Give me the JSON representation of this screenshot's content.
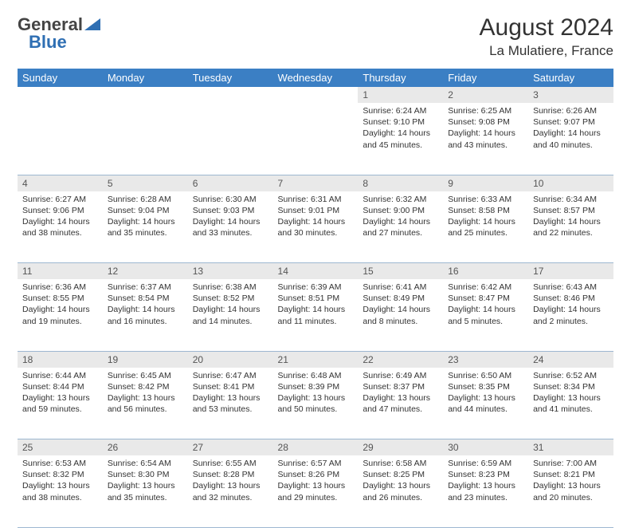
{
  "logo": {
    "word1": "General",
    "word2": "Blue",
    "word2_color": "#2f6fb3"
  },
  "title": "August 2024",
  "location": "La Mulatiere, France",
  "header_bg": "#3b7fc4",
  "daynum_bg": "#e9e9e9",
  "border_color": "#9db7d1",
  "day_headers": [
    "Sunday",
    "Monday",
    "Tuesday",
    "Wednesday",
    "Thursday",
    "Friday",
    "Saturday"
  ],
  "weeks": [
    [
      null,
      null,
      null,
      null,
      {
        "n": "1",
        "sr": "Sunrise: 6:24 AM",
        "ss": "Sunset: 9:10 PM",
        "dl": "Daylight: 14 hours and 45 minutes."
      },
      {
        "n": "2",
        "sr": "Sunrise: 6:25 AM",
        "ss": "Sunset: 9:08 PM",
        "dl": "Daylight: 14 hours and 43 minutes."
      },
      {
        "n": "3",
        "sr": "Sunrise: 6:26 AM",
        "ss": "Sunset: 9:07 PM",
        "dl": "Daylight: 14 hours and 40 minutes."
      }
    ],
    [
      {
        "n": "4",
        "sr": "Sunrise: 6:27 AM",
        "ss": "Sunset: 9:06 PM",
        "dl": "Daylight: 14 hours and 38 minutes."
      },
      {
        "n": "5",
        "sr": "Sunrise: 6:28 AM",
        "ss": "Sunset: 9:04 PM",
        "dl": "Daylight: 14 hours and 35 minutes."
      },
      {
        "n": "6",
        "sr": "Sunrise: 6:30 AM",
        "ss": "Sunset: 9:03 PM",
        "dl": "Daylight: 14 hours and 33 minutes."
      },
      {
        "n": "7",
        "sr": "Sunrise: 6:31 AM",
        "ss": "Sunset: 9:01 PM",
        "dl": "Daylight: 14 hours and 30 minutes."
      },
      {
        "n": "8",
        "sr": "Sunrise: 6:32 AM",
        "ss": "Sunset: 9:00 PM",
        "dl": "Daylight: 14 hours and 27 minutes."
      },
      {
        "n": "9",
        "sr": "Sunrise: 6:33 AM",
        "ss": "Sunset: 8:58 PM",
        "dl": "Daylight: 14 hours and 25 minutes."
      },
      {
        "n": "10",
        "sr": "Sunrise: 6:34 AM",
        "ss": "Sunset: 8:57 PM",
        "dl": "Daylight: 14 hours and 22 minutes."
      }
    ],
    [
      {
        "n": "11",
        "sr": "Sunrise: 6:36 AM",
        "ss": "Sunset: 8:55 PM",
        "dl": "Daylight: 14 hours and 19 minutes."
      },
      {
        "n": "12",
        "sr": "Sunrise: 6:37 AM",
        "ss": "Sunset: 8:54 PM",
        "dl": "Daylight: 14 hours and 16 minutes."
      },
      {
        "n": "13",
        "sr": "Sunrise: 6:38 AM",
        "ss": "Sunset: 8:52 PM",
        "dl": "Daylight: 14 hours and 14 minutes."
      },
      {
        "n": "14",
        "sr": "Sunrise: 6:39 AM",
        "ss": "Sunset: 8:51 PM",
        "dl": "Daylight: 14 hours and 11 minutes."
      },
      {
        "n": "15",
        "sr": "Sunrise: 6:41 AM",
        "ss": "Sunset: 8:49 PM",
        "dl": "Daylight: 14 hours and 8 minutes."
      },
      {
        "n": "16",
        "sr": "Sunrise: 6:42 AM",
        "ss": "Sunset: 8:47 PM",
        "dl": "Daylight: 14 hours and 5 minutes."
      },
      {
        "n": "17",
        "sr": "Sunrise: 6:43 AM",
        "ss": "Sunset: 8:46 PM",
        "dl": "Daylight: 14 hours and 2 minutes."
      }
    ],
    [
      {
        "n": "18",
        "sr": "Sunrise: 6:44 AM",
        "ss": "Sunset: 8:44 PM",
        "dl": "Daylight: 13 hours and 59 minutes."
      },
      {
        "n": "19",
        "sr": "Sunrise: 6:45 AM",
        "ss": "Sunset: 8:42 PM",
        "dl": "Daylight: 13 hours and 56 minutes."
      },
      {
        "n": "20",
        "sr": "Sunrise: 6:47 AM",
        "ss": "Sunset: 8:41 PM",
        "dl": "Daylight: 13 hours and 53 minutes."
      },
      {
        "n": "21",
        "sr": "Sunrise: 6:48 AM",
        "ss": "Sunset: 8:39 PM",
        "dl": "Daylight: 13 hours and 50 minutes."
      },
      {
        "n": "22",
        "sr": "Sunrise: 6:49 AM",
        "ss": "Sunset: 8:37 PM",
        "dl": "Daylight: 13 hours and 47 minutes."
      },
      {
        "n": "23",
        "sr": "Sunrise: 6:50 AM",
        "ss": "Sunset: 8:35 PM",
        "dl": "Daylight: 13 hours and 44 minutes."
      },
      {
        "n": "24",
        "sr": "Sunrise: 6:52 AM",
        "ss": "Sunset: 8:34 PM",
        "dl": "Daylight: 13 hours and 41 minutes."
      }
    ],
    [
      {
        "n": "25",
        "sr": "Sunrise: 6:53 AM",
        "ss": "Sunset: 8:32 PM",
        "dl": "Daylight: 13 hours and 38 minutes."
      },
      {
        "n": "26",
        "sr": "Sunrise: 6:54 AM",
        "ss": "Sunset: 8:30 PM",
        "dl": "Daylight: 13 hours and 35 minutes."
      },
      {
        "n": "27",
        "sr": "Sunrise: 6:55 AM",
        "ss": "Sunset: 8:28 PM",
        "dl": "Daylight: 13 hours and 32 minutes."
      },
      {
        "n": "28",
        "sr": "Sunrise: 6:57 AM",
        "ss": "Sunset: 8:26 PM",
        "dl": "Daylight: 13 hours and 29 minutes."
      },
      {
        "n": "29",
        "sr": "Sunrise: 6:58 AM",
        "ss": "Sunset: 8:25 PM",
        "dl": "Daylight: 13 hours and 26 minutes."
      },
      {
        "n": "30",
        "sr": "Sunrise: 6:59 AM",
        "ss": "Sunset: 8:23 PM",
        "dl": "Daylight: 13 hours and 23 minutes."
      },
      {
        "n": "31",
        "sr": "Sunrise: 7:00 AM",
        "ss": "Sunset: 8:21 PM",
        "dl": "Daylight: 13 hours and 20 minutes."
      }
    ]
  ]
}
